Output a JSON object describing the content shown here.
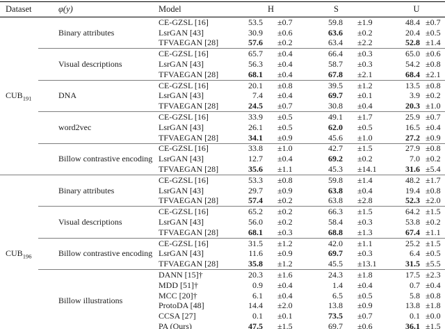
{
  "table": {
    "columns": {
      "dataset": "Dataset",
      "phi": "φ(y)",
      "model": "Model",
      "metrics": [
        "H",
        "S",
        "U"
      ]
    },
    "datasets": [
      {
        "name_base": "CUB",
        "name_sub": "191",
        "groups": [
          {
            "phi": "Binary attributes",
            "rows": [
              {
                "model": "CE-GZSL [16]",
                "cells": [
                  [
                    "53.5",
                    "±0.7",
                    0
                  ],
                  [
                    "59.8",
                    "±1.9",
                    0
                  ],
                  [
                    "48.4",
                    "±0.7",
                    0
                  ]
                ]
              },
              {
                "model": "LsrGAN [43]",
                "cells": [
                  [
                    "30.9",
                    "±0.6",
                    0
                  ],
                  [
                    "63.6",
                    "±0.2",
                    1
                  ],
                  [
                    "20.4",
                    "±0.5",
                    0
                  ]
                ]
              },
              {
                "model": "TFVAEGAN [28]",
                "cells": [
                  [
                    "57.6",
                    "±0.2",
                    1
                  ],
                  [
                    "63.4",
                    "±2.2",
                    0
                  ],
                  [
                    "52.8",
                    "±1.4",
                    1
                  ]
                ]
              }
            ]
          },
          {
            "phi": "Visual descriptions",
            "rows": [
              {
                "model": "CE-GZSL [16]",
                "cells": [
                  [
                    "65.7",
                    "±0.4",
                    0
                  ],
                  [
                    "66.4",
                    "±0.3",
                    0
                  ],
                  [
                    "65.0",
                    "±0.6",
                    0
                  ]
                ]
              },
              {
                "model": "LsrGAN [43]",
                "cells": [
                  [
                    "56.3",
                    "±0.4",
                    0
                  ],
                  [
                    "58.7",
                    "±0.3",
                    0
                  ],
                  [
                    "54.2",
                    "±0.8",
                    0
                  ]
                ]
              },
              {
                "model": "TFVAEGAN [28]",
                "cells": [
                  [
                    "68.1",
                    "±0.4",
                    1
                  ],
                  [
                    "67.8",
                    "±2.1",
                    1
                  ],
                  [
                    "68.4",
                    "±2.1",
                    1
                  ]
                ]
              }
            ]
          },
          {
            "phi": "DNA",
            "rows": [
              {
                "model": "CE-GZSL [16]",
                "cells": [
                  [
                    "20.1",
                    "±0.8",
                    0
                  ],
                  [
                    "39.5",
                    "±1.2",
                    0
                  ],
                  [
                    "13.5",
                    "±0.8",
                    0
                  ]
                ]
              },
              {
                "model": "LsrGAN [43]",
                "cells": [
                  [
                    "7.4",
                    "±0.4",
                    0
                  ],
                  [
                    "69.7",
                    "±0.1",
                    1
                  ],
                  [
                    "3.9",
                    "±0.2",
                    0
                  ]
                ]
              },
              {
                "model": "TFVAEGAN [28]",
                "cells": [
                  [
                    "24.5",
                    "±0.7",
                    1
                  ],
                  [
                    "30.8",
                    "±0.4",
                    0
                  ],
                  [
                    "20.3",
                    "±1.0",
                    1
                  ]
                ]
              }
            ]
          },
          {
            "phi": "word2vec",
            "rows": [
              {
                "model": "CE-GZSL [16]",
                "cells": [
                  [
                    "33.9",
                    "±0.5",
                    0
                  ],
                  [
                    "49.1",
                    "±1.7",
                    0
                  ],
                  [
                    "25.9",
                    "±0.7",
                    0
                  ]
                ]
              },
              {
                "model": "LsrGAN [43]",
                "cells": [
                  [
                    "26.1",
                    "±0.5",
                    0
                  ],
                  [
                    "62.0",
                    "±0.5",
                    1
                  ],
                  [
                    "16.5",
                    "±0.4",
                    0
                  ]
                ]
              },
              {
                "model": "TFVAEGAN [28]",
                "cells": [
                  [
                    "34.1",
                    "±0.9",
                    1
                  ],
                  [
                    "45.6",
                    "±1.0",
                    0
                  ],
                  [
                    "27.2",
                    "±0.9",
                    1
                  ]
                ]
              }
            ]
          },
          {
            "phi": "Billow contrastive encoding",
            "rows": [
              {
                "model": "CE-GZSL [16]",
                "cells": [
                  [
                    "33.8",
                    "±1.0",
                    0
                  ],
                  [
                    "42.7",
                    "±1.5",
                    0
                  ],
                  [
                    "27.9",
                    "±0.8",
                    0
                  ]
                ]
              },
              {
                "model": "LsrGAN [43]",
                "cells": [
                  [
                    "12.7",
                    "±0.4",
                    0
                  ],
                  [
                    "69.2",
                    "±0.2",
                    1
                  ],
                  [
                    "7.0",
                    "±0.2",
                    0
                  ]
                ]
              },
              {
                "model": "TFVAEGAN [28]",
                "cells": [
                  [
                    "35.6",
                    "±1.1",
                    1
                  ],
                  [
                    "45.3",
                    "±14.1",
                    0
                  ],
                  [
                    "31.6",
                    "±5.4",
                    1
                  ]
                ]
              }
            ]
          }
        ]
      },
      {
        "name_base": "CUB",
        "name_sub": "196",
        "groups": [
          {
            "phi": "Binary attributes",
            "rows": [
              {
                "model": "CE-GZSL [16]",
                "cells": [
                  [
                    "53.3",
                    "±0.8",
                    0
                  ],
                  [
                    "59.8",
                    "±1.4",
                    0
                  ],
                  [
                    "48.2",
                    "±1.7",
                    0
                  ]
                ]
              },
              {
                "model": "LsrGAN [43]",
                "cells": [
                  [
                    "29.7",
                    "±0.9",
                    0
                  ],
                  [
                    "63.8",
                    "±0.4",
                    1
                  ],
                  [
                    "19.4",
                    "±0.8",
                    0
                  ]
                ]
              },
              {
                "model": "TFVAEGAN [28]",
                "cells": [
                  [
                    "57.4",
                    "±0.2",
                    1
                  ],
                  [
                    "63.8",
                    "±2.8",
                    0
                  ],
                  [
                    "52.3",
                    "±2.0",
                    1
                  ]
                ]
              }
            ]
          },
          {
            "phi": "Visual descriptions",
            "rows": [
              {
                "model": "CE-GZSL [16]",
                "cells": [
                  [
                    "65.2",
                    "±0.2",
                    0
                  ],
                  [
                    "66.3",
                    "±1.5",
                    0
                  ],
                  [
                    "64.2",
                    "±1.5",
                    0
                  ]
                ]
              },
              {
                "model": "LsrGAN [43]",
                "cells": [
                  [
                    "56.0",
                    "±0.2",
                    0
                  ],
                  [
                    "58.4",
                    "±0.3",
                    0
                  ],
                  [
                    "53.8",
                    "±0.2",
                    0
                  ]
                ]
              },
              {
                "model": "TFVAEGAN [28]",
                "cells": [
                  [
                    "68.1",
                    "±0.3",
                    1
                  ],
                  [
                    "68.8",
                    "±1.3",
                    1
                  ],
                  [
                    "67.4",
                    "±1.1",
                    1
                  ]
                ]
              }
            ]
          },
          {
            "phi": "Billow contrastive encoding",
            "rows": [
              {
                "model": "CE-GZSL [16]",
                "cells": [
                  [
                    "31.5",
                    "±1.2",
                    0
                  ],
                  [
                    "42.0",
                    "±1.1",
                    0
                  ],
                  [
                    "25.2",
                    "±1.5",
                    0
                  ]
                ]
              },
              {
                "model": "LsrGAN [43]",
                "cells": [
                  [
                    "11.6",
                    "±0.9",
                    0
                  ],
                  [
                    "69.7",
                    "±0.3",
                    1
                  ],
                  [
                    "6.4",
                    "±0.5",
                    0
                  ]
                ]
              },
              {
                "model": "TFVAEGAN [28]",
                "cells": [
                  [
                    "35.8",
                    "±1.2",
                    1
                  ],
                  [
                    "45.5",
                    "±13.1",
                    0
                  ],
                  [
                    "31.5",
                    "±5.5",
                    1
                  ]
                ]
              }
            ]
          },
          {
            "phi": "Billow illustrations",
            "rows": [
              {
                "model": "DANN [15]†",
                "cells": [
                  [
                    "20.3",
                    "±1.6",
                    0
                  ],
                  [
                    "24.3",
                    "±1.8",
                    0
                  ],
                  [
                    "17.5",
                    "±2.3",
                    0
                  ]
                ]
              },
              {
                "model": "MDD [51]†",
                "cells": [
                  [
                    "0.9",
                    "±0.4",
                    0
                  ],
                  [
                    "1.4",
                    "±0.4",
                    0
                  ],
                  [
                    "0.7",
                    "±0.4",
                    0
                  ]
                ]
              },
              {
                "model": "MCC [20]†",
                "cells": [
                  [
                    "6.1",
                    "±0.4",
                    0
                  ],
                  [
                    "6.5",
                    "±0.5",
                    0
                  ],
                  [
                    "5.8",
                    "±0.8",
                    0
                  ]
                ]
              },
              {
                "model": "ProtoDA [48]",
                "cells": [
                  [
                    "14.4",
                    "±2.0",
                    0
                  ],
                  [
                    "13.8",
                    "±0.9",
                    0
                  ],
                  [
                    "13.8",
                    "±1.8",
                    0
                  ]
                ]
              },
              {
                "model": "CCSA [27]",
                "cells": [
                  [
                    "0.1",
                    "±0.1",
                    0
                  ],
                  [
                    "73.5",
                    "±0.7",
                    1
                  ],
                  [
                    "0.1",
                    "±0.0",
                    0
                  ]
                ]
              },
              {
                "model": "PA (Ours)",
                "cells": [
                  [
                    "47.5",
                    "±1.5",
                    1
                  ],
                  [
                    "69.7",
                    "±0.6",
                    0
                  ],
                  [
                    "36.1",
                    "±1.5",
                    1
                  ]
                ]
              }
            ]
          }
        ]
      }
    ]
  }
}
